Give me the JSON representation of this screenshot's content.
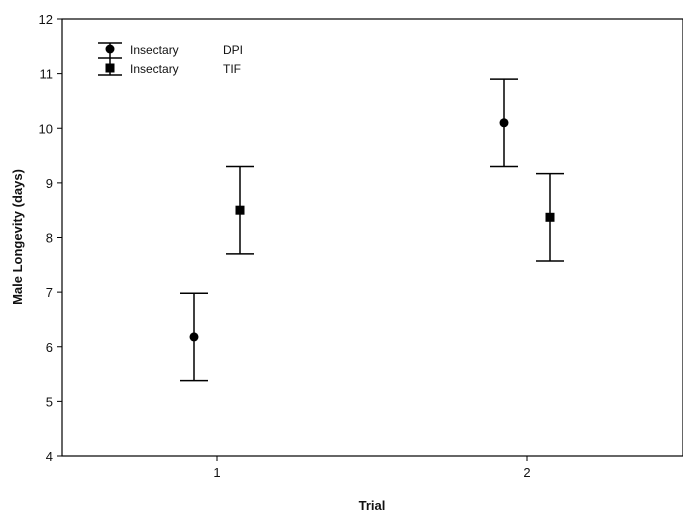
{
  "chart_data": {
    "type": "scatter",
    "title": "",
    "xlabel": "Trial",
    "ylabel": "Male Longevity (days)",
    "categories": [
      "1",
      "2"
    ],
    "ylim": [
      4,
      12
    ],
    "yticks": [
      4,
      5,
      6,
      7,
      8,
      9,
      10,
      11,
      12
    ],
    "grid": false,
    "legend_position": "top-left",
    "series": [
      {
        "group": "Insectary",
        "name": "DPI",
        "marker": "circle",
        "points": [
          {
            "x": "1",
            "mean": 6.18,
            "lower": 5.38,
            "upper": 6.98
          },
          {
            "x": "2",
            "mean": 10.1,
            "lower": 9.3,
            "upper": 10.9
          }
        ]
      },
      {
        "group": "Insectary",
        "name": "TIF",
        "marker": "square",
        "points": [
          {
            "x": "1",
            "mean": 8.5,
            "lower": 7.7,
            "upper": 9.3
          },
          {
            "x": "2",
            "mean": 8.37,
            "lower": 7.57,
            "upper": 9.17
          }
        ]
      }
    ]
  }
}
